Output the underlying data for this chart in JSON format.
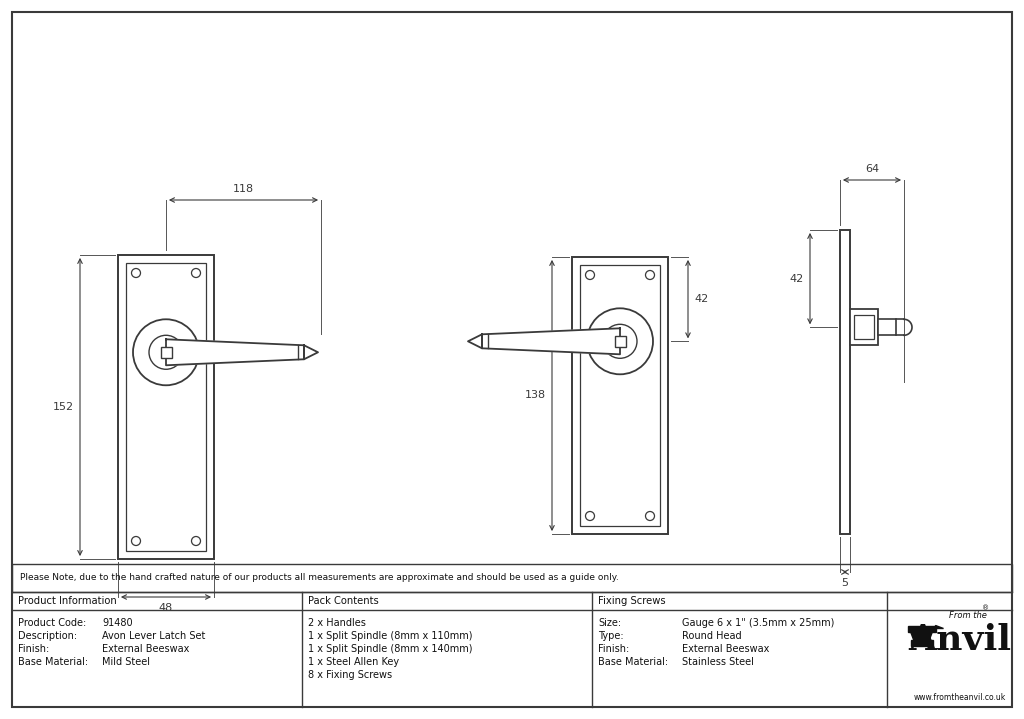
{
  "line_color": "#3a3a3a",
  "bg_color": "#ffffff",
  "title_note": "Please Note, due to the hand crafted nature of our products all measurements are approximate and should be used as a guide only.",
  "product_info": {
    "header": "Product Information",
    "rows": [
      [
        "Product Code:",
        "91480"
      ],
      [
        "Description:",
        "Avon Lever Latch Set"
      ],
      [
        "Finish:",
        "External Beeswax"
      ],
      [
        "Base Material:",
        "Mild Steel"
      ]
    ]
  },
  "pack_contents": {
    "header": "Pack Contents",
    "items": [
      "2 x Handles",
      "1 x Split Spindle (8mm x 110mm)",
      "1 x Split Spindle (8mm x 140mm)",
      "1 x Steel Allen Key",
      "8 x Fixing Screws"
    ]
  },
  "fixing_screws": {
    "header": "Fixing Screws",
    "rows": [
      [
        "Size:",
        "Gauge 6 x 1\" (3.5mm x 25mm)"
      ],
      [
        "Type:",
        "Round Head"
      ],
      [
        "Finish:",
        "External Beeswax"
      ],
      [
        "Base Material:",
        "Stainless Steel"
      ]
    ]
  },
  "dim_118": "118",
  "dim_48": "48",
  "dim_152": "152",
  "dim_138": "138",
  "dim_42": "42",
  "dim_64": "64",
  "dim_5": "5"
}
